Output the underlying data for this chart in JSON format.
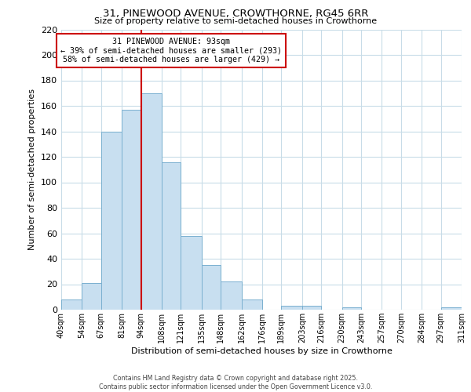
{
  "title1": "31, PINEWOOD AVENUE, CROWTHORNE, RG45 6RR",
  "title2": "Size of property relative to semi-detached houses in Crowthorne",
  "xlabel": "Distribution of semi-detached houses by size in Crowthorne",
  "ylabel": "Number of semi-detached properties",
  "bar_edges": [
    40,
    54,
    67,
    81,
    94,
    108,
    121,
    135,
    148,
    162,
    176,
    189,
    203,
    216,
    230,
    243,
    257,
    270,
    284,
    297,
    311
  ],
  "bar_heights": [
    8,
    21,
    140,
    157,
    170,
    116,
    58,
    35,
    22,
    8,
    0,
    3,
    3,
    0,
    2,
    0,
    0,
    0,
    0,
    2
  ],
  "bar_color": "#c8dff0",
  "bar_edge_color": "#7ab0d0",
  "property_line_x": 94,
  "annotation_title": "31 PINEWOOD AVENUE: 93sqm",
  "annotation_line1": "← 39% of semi-detached houses are smaller (293)",
  "annotation_line2": "58% of semi-detached houses are larger (429) →",
  "tick_labels": [
    "40sqm",
    "54sqm",
    "67sqm",
    "81sqm",
    "94sqm",
    "108sqm",
    "121sqm",
    "135sqm",
    "148sqm",
    "162sqm",
    "176sqm",
    "189sqm",
    "203sqm",
    "216sqm",
    "230sqm",
    "243sqm",
    "257sqm",
    "270sqm",
    "284sqm",
    "297sqm",
    "311sqm"
  ],
  "ylim": [
    0,
    220
  ],
  "yticks": [
    0,
    20,
    40,
    60,
    80,
    100,
    120,
    140,
    160,
    180,
    200,
    220
  ],
  "footnote1": "Contains HM Land Registry data © Crown copyright and database right 2025.",
  "footnote2": "Contains public sector information licensed under the Open Government Licence v3.0.",
  "background_color": "#ffffff",
  "grid_color": "#c8dce8",
  "annotation_box_color": "#ffffff",
  "annotation_box_edge": "#cc0000",
  "vline_color": "#cc0000"
}
